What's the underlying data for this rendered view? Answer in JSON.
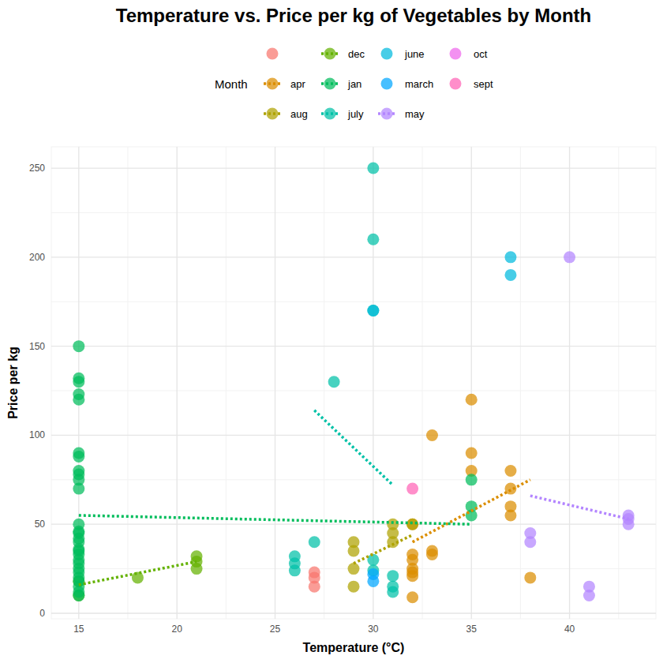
{
  "chart_data": {
    "type": "scatter",
    "title": "Temperature vs. Price per kg of Vegetables by Month",
    "x_label": "Temperature (°C)",
    "y_label": "Price per kg",
    "legend_title": "Month",
    "xlim": [
      13.6,
      44.4
    ],
    "ylim": [
      -3.1,
      262
    ],
    "xticks": [
      15,
      20,
      25,
      30,
      35,
      40
    ],
    "yticks": [
      0,
      50,
      100,
      150,
      200,
      250
    ],
    "grid": true,
    "legend": "top",
    "series": [
      {
        "name": null,
        "color": "#F8766D",
        "marker": "circle",
        "x": [
          27,
          27,
          27
        ],
        "values": [
          23,
          20,
          15
        ]
      },
      {
        "name": "apr",
        "color": "#DB8E00",
        "marker": "circle",
        "line_style": "dotted",
        "x": [
          32,
          32,
          32,
          32,
          32,
          32,
          32,
          33,
          33,
          33,
          35,
          35,
          35,
          37,
          37,
          37,
          37,
          38
        ],
        "values": [
          50,
          33,
          30,
          25,
          23,
          21,
          9,
          100,
          35,
          33,
          120,
          90,
          80,
          80,
          70,
          60,
          55,
          20
        ],
        "trend": {
          "x": [
            32,
            38
          ],
          "values": [
            40,
            75
          ]
        }
      },
      {
        "name": "aug",
        "color": "#AEA200",
        "marker": "circle",
        "line_style": "dotted",
        "x": [
          29,
          29,
          29,
          29,
          31,
          31,
          31,
          32
        ],
        "values": [
          40,
          35,
          25,
          15,
          50,
          45,
          40,
          50
        ],
        "trend": {
          "x": [
            29,
            32
          ],
          "values": [
            28,
            44
          ]
        }
      },
      {
        "name": "dec",
        "color": "#64B200",
        "marker": "circle",
        "line_style": "dotted",
        "x": [
          15,
          15,
          18,
          21,
          21,
          21
        ],
        "values": [
          10,
          18,
          20,
          32,
          29,
          25
        ],
        "trend": {
          "x": [
            15,
            21
          ],
          "values": [
            16,
            29
          ]
        }
      },
      {
        "name": "jan",
        "color": "#00BD5C",
        "marker": "circle",
        "line_style": "dotted",
        "x": [
          15,
          15,
          15,
          15,
          15,
          15,
          15,
          15,
          15,
          15,
          15,
          15,
          15,
          15,
          15,
          15,
          15,
          15,
          15,
          15,
          15,
          15,
          15,
          15,
          15,
          15,
          15,
          15,
          35,
          35,
          35
        ],
        "values": [
          150,
          132,
          130,
          123,
          120,
          90,
          88,
          80,
          78,
          75,
          70,
          50,
          46,
          45,
          42,
          40,
          36,
          35,
          33,
          30,
          28,
          25,
          23,
          20,
          18,
          15,
          12,
          10,
          75,
          60,
          55
        ],
        "trend": {
          "x": [
            15,
            35
          ],
          "values": [
            55,
            50
          ]
        }
      },
      {
        "name": "july",
        "color": "#00C1A7",
        "marker": "circle",
        "line_style": "dotted",
        "x": [
          26,
          26,
          26,
          27,
          28,
          30,
          30,
          30,
          30,
          30,
          31,
          31,
          31
        ],
        "values": [
          32,
          28,
          24,
          40,
          130,
          250,
          210,
          170,
          30,
          24,
          21,
          15,
          12
        ],
        "trend": {
          "x": [
            27,
            31
          ],
          "values": [
            114,
            72
          ]
        }
      },
      {
        "name": "june",
        "color": "#00BADE",
        "marker": "circle",
        "x": [
          37,
          37,
          30
        ],
        "values": [
          200,
          190,
          170
        ]
      },
      {
        "name": "march",
        "color": "#00A6FF",
        "marker": "circle",
        "x": [
          30,
          30
        ],
        "values": [
          22,
          18
        ]
      },
      {
        "name": "may",
        "color": "#B385FF",
        "marker": "circle",
        "line_style": "dotted",
        "x": [
          40,
          38,
          38,
          41,
          41,
          43,
          43,
          43
        ],
        "values": [
          200,
          45,
          40,
          15,
          10,
          55,
          53,
          50
        ],
        "trend": {
          "x": [
            38,
            43
          ],
          "values": [
            66,
            53
          ]
        }
      },
      {
        "name": "oct",
        "color": "#EF67EB",
        "marker": "circle",
        "x": [],
        "values": []
      },
      {
        "name": "sept",
        "color": "#FF63B6",
        "marker": "circle",
        "x": [
          32
        ],
        "values": [
          70
        ]
      }
    ]
  }
}
